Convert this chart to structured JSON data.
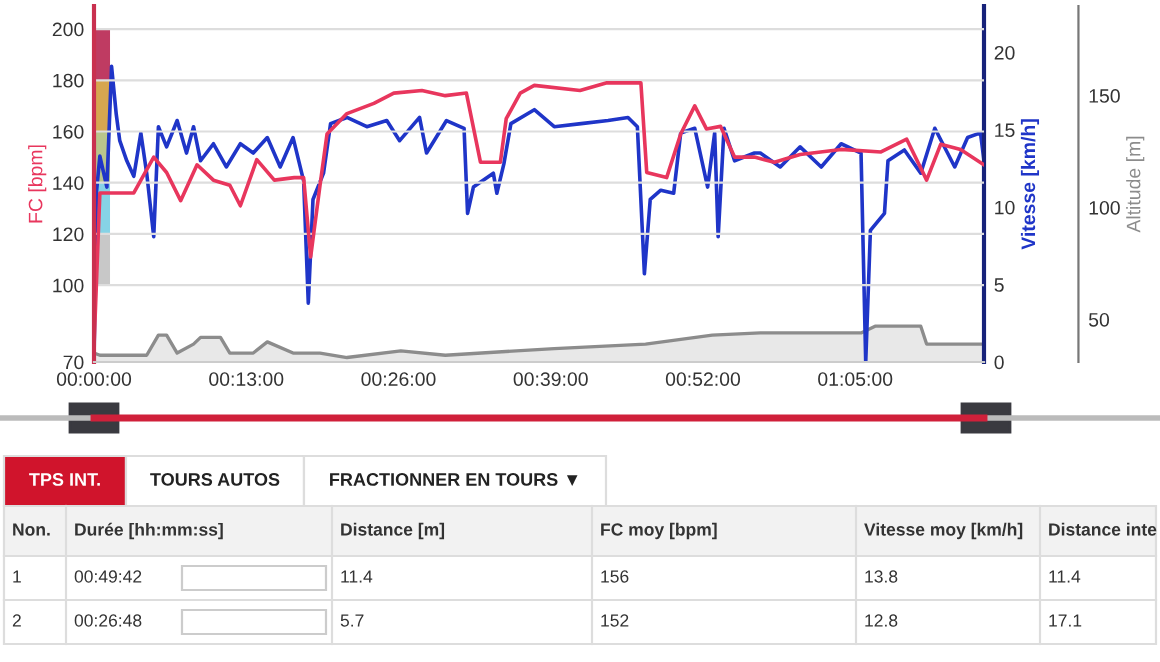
{
  "chart_data": [
    {
      "type": "line",
      "ylabel": "FC [bpm]",
      "y2label": "Vitesse [km/h]",
      "y3label": "Altitude [m]",
      "xlim": [
        0,
        76
      ],
      "xticks": [
        {
          "value": 0,
          "label": "00:00:00"
        },
        {
          "value": 13,
          "label": "00:13:00"
        },
        {
          "value": 26,
          "label": "00:26:00"
        },
        {
          "value": 39,
          "label": "00:39:00"
        },
        {
          "value": 52,
          "label": "00:52:00"
        },
        {
          "value": 65,
          "label": "01:05:00"
        }
      ],
      "ylim": [
        70,
        209
      ],
      "yticks": [
        70,
        100,
        120,
        140,
        160,
        180,
        200
      ],
      "y2lim": [
        0,
        23
      ],
      "y2ticks": [
        0,
        5,
        10,
        15,
        20
      ],
      "y3lim": [
        31,
        190
      ],
      "y3ticks": [
        50,
        100,
        150
      ],
      "grid": "y",
      "marker": "none",
      "line_style": "solid",
      "series": [
        {
          "type": "area",
          "axis": "y3",
          "color": "#8c8c8c",
          "x": [
            0,
            0.5,
            4.5,
            5.5,
            6.2,
            7.1,
            8.5,
            9.1,
            10.8,
            11.6,
            13.6,
            14.8,
            17.0,
            19.3,
            21.6,
            26.2,
            30,
            39.3,
            47.1,
            52.8,
            56.9,
            65.5,
            66.7,
            70.6,
            71.1,
            76
          ],
          "values": [
            35,
            34,
            34,
            43,
            43,
            35,
            39,
            42,
            42,
            35,
            35,
            40,
            35,
            35,
            33,
            36,
            34,
            37,
            39,
            43,
            44,
            44,
            47,
            47,
            39,
            39
          ]
        },
        {
          "axis": "y",
          "color": "#e8365d",
          "x": [
            0,
            0.5,
            3.4,
            5.1,
            6.2,
            7.4,
            8.8,
            10.2,
            11.6,
            12.5,
            13.9,
            15.4,
            17.1,
            17.9,
            18.5,
            19.3,
            19.9,
            21.6,
            23.9,
            25.6,
            28,
            30,
            31.8,
            33,
            34.7,
            35.2,
            36.4,
            37.6,
            41.5,
            43.8,
            46.7,
            47.2,
            48.9,
            50.1,
            51.3,
            52.3,
            53.5,
            54.7,
            56.4,
            58.1,
            60.3,
            63.8,
            67.2,
            69.4,
            71.1,
            72.3,
            74.0,
            76.0
          ],
          "values": [
            76,
            136,
            136,
            150,
            144,
            133,
            147,
            141,
            139,
            131,
            149,
            141,
            142,
            142,
            111,
            139,
            159,
            167,
            171,
            175,
            176,
            174,
            175,
            148,
            148,
            165,
            175,
            178,
            176,
            179,
            179,
            144,
            142,
            159,
            170,
            161,
            162,
            150,
            150,
            148,
            151,
            153,
            152,
            157,
            141,
            155,
            153,
            147
          ]
        },
        {
          "axis": "y2",
          "color": "#1f35c8",
          "x": [
            0,
            0.2,
            0.5,
            1.1,
            1.5,
            1.9,
            2.2,
            2.8,
            3.4,
            4.0,
            4.5,
            5.1,
            5.5,
            6.2,
            7.1,
            7.9,
            8.5,
            9.1,
            10.2,
            11.3,
            12.5,
            13.6,
            14.8,
            15.9,
            17.0,
            17.9,
            18.3,
            18.7,
            19.6,
            20.2,
            21.6,
            23.3,
            25.0,
            26.1,
            27.8,
            28.4,
            30.1,
            31.6,
            31.9,
            32.4,
            34.1,
            34.4,
            35.0,
            35.6,
            37.6,
            39.3,
            41.6,
            43.9,
            45.6,
            46.4,
            47.0,
            47.5,
            48.4,
            49.5,
            50.1,
            51.3,
            52.4,
            53.0,
            53.3,
            53.8,
            54.7,
            56.4,
            56.9,
            58.6,
            60.3,
            62.1,
            63.8,
            65.5,
            65.9,
            66.3,
            67.5,
            67.8,
            69.2,
            70.6,
            71.8,
            73.5,
            74.6,
            75.7,
            76.0
          ],
          "values": [
            0,
            10.9,
            13.3,
            11.3,
            19.1,
            16.0,
            14.3,
            13.0,
            12.0,
            14.8,
            12.2,
            8.1,
            15.2,
            13.9,
            15.6,
            13.5,
            15.2,
            13.0,
            14.1,
            12.6,
            14.1,
            13.5,
            14.5,
            12.6,
            14.5,
            11.7,
            3.8,
            10.5,
            12.2,
            15.4,
            15.8,
            15.2,
            15.6,
            14.3,
            15.8,
            13.5,
            15.6,
            15.1,
            9.6,
            11.3,
            12.2,
            10.9,
            12.8,
            15.4,
            16.3,
            15.2,
            15.4,
            15.6,
            15.8,
            15.2,
            5.7,
            10.5,
            11.1,
            10.9,
            14.8,
            15.1,
            11.3,
            14.8,
            8.1,
            15.1,
            13.0,
            13.5,
            13.5,
            12.6,
            13.9,
            12.6,
            14.1,
            13.5,
            0,
            8.5,
            9.6,
            13.0,
            13.7,
            12.2,
            15.1,
            12.6,
            14.5,
            14.8,
            13.0
          ]
        }
      ]
    },
    {
      "type": "other",
      "annotations": [
        "TPS INT.",
        "TOURS AUTOS",
        "FRACTIONNER EN TOURS ▼",
        "Non.",
        "Durée [hh:mm:ss]",
        "Distance [m]",
        "FC moy [bpm]",
        "Vitesse moy [km/h]",
        "Distance inte",
        "1",
        "00:49:42",
        "11.4",
        "156",
        "13.8",
        "11.4",
        "2",
        "00:26:48",
        "5.7",
        "152",
        "12.8",
        "17.1"
      ]
    }
  ]
}
